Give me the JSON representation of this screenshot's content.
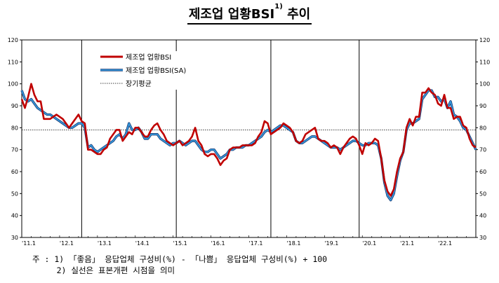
{
  "title": {
    "main": "제조업 업황BSI",
    "superscript": "1)",
    "suffix": " 추이"
  },
  "notes": [
    "주 : 1) 「좋음」 응답업체 구성비(%) - 「나쁨」 응답업체 구성비(%) + 100",
    "     2) 실선은 표본개편 시점을 의미"
  ],
  "chart_data": {
    "type": "line",
    "ylim": [
      30,
      120
    ],
    "yticks": [
      "120",
      "110",
      "100",
      "90",
      "80",
      "70",
      "60",
      "50",
      "40",
      "30"
    ],
    "xlabels": [
      "'11.1",
      "'12.1",
      "'13.1",
      "'14.1",
      "'15.1",
      "'16.1",
      "'17.1",
      "'18.1",
      "'19.1",
      "'20.1",
      "'21.1",
      "'22.1"
    ],
    "xlim": [
      0,
      144
    ],
    "long_term_average": 79,
    "sample_revision_months": [
      19,
      49,
      79,
      107
    ],
    "colors": {
      "bsi": "#c00000",
      "bsi_sa": "#3399dd",
      "bsi_sa_outline": "#1f3b73",
      "average": "#000000"
    },
    "legend": {
      "placement": "top-left",
      "items": [
        "제조업 업황BSI",
        "제조업 업황BSI(SA)",
        "장기평균"
      ]
    },
    "series": [
      {
        "name": "제조업 업황BSI",
        "values": [
          93,
          89,
          94,
          100,
          95,
          92,
          92,
          84,
          84,
          84,
          85,
          86,
          85,
          84,
          82,
          80,
          82,
          84,
          86,
          83,
          82,
          70,
          70,
          69,
          68,
          68,
          70,
          71,
          75,
          77,
          79,
          79,
          74,
          76,
          78,
          77,
          80,
          80,
          78,
          76,
          76,
          79,
          81,
          82,
          79,
          77,
          74,
          73,
          72,
          73,
          74,
          72,
          73,
          74,
          76,
          80,
          74,
          72,
          68,
          67,
          68,
          68,
          66,
          63,
          65,
          66,
          70,
          71,
          71,
          71,
          72,
          72,
          72,
          72,
          73,
          76,
          78,
          83,
          82,
          77,
          78,
          79,
          80,
          82,
          81,
          80,
          78,
          74,
          73,
          74,
          77,
          78,
          79,
          80,
          75,
          74,
          74,
          73,
          71,
          72,
          71,
          68,
          71,
          73,
          75,
          76,
          75,
          72,
          68,
          73,
          72,
          73,
          75,
          74,
          66,
          56,
          51,
          49,
          52,
          60,
          66,
          69,
          80,
          84,
          81,
          85,
          85,
          96,
          96,
          98,
          96,
          95,
          91,
          90,
          95,
          89,
          89,
          84,
          85,
          85,
          81,
          80,
          75,
          72,
          71
        ],
        "grid_step_months": 1
      },
      {
        "name": "제조업 업황BSI(SA)",
        "values": [
          97,
          93,
          92,
          93,
          91,
          89,
          88,
          87,
          86,
          86,
          85,
          84,
          83,
          82,
          81,
          80,
          80,
          81,
          82,
          82,
          80,
          71,
          72,
          70,
          69,
          70,
          71,
          72,
          73,
          74,
          76,
          77,
          75,
          77,
          82,
          79,
          79,
          80,
          78,
          75,
          75,
          77,
          77,
          77,
          75,
          74,
          73,
          72,
          73,
          73,
          74,
          73,
          72,
          73,
          74,
          74,
          72,
          70,
          69,
          69,
          70,
          70,
          68,
          66,
          67,
          68,
          70,
          70,
          71,
          71,
          71,
          72,
          72,
          73,
          74,
          75,
          76,
          78,
          79,
          78,
          79,
          80,
          81,
          81,
          80,
          79,
          78,
          74,
          73,
          73,
          74,
          75,
          76,
          76,
          75,
          74,
          73,
          72,
          71,
          71,
          71,
          70,
          71,
          72,
          73,
          74,
          74,
          73,
          72,
          72,
          73,
          73,
          73,
          72,
          66,
          55,
          49,
          47,
          50,
          58,
          65,
          69,
          79,
          82,
          82,
          83,
          84,
          93,
          95,
          97,
          97,
          94,
          94,
          92,
          93,
          89,
          92,
          86,
          85,
          83,
          80,
          79,
          76,
          73,
          70
        ],
        "grid_step_months": 1
      }
    ]
  }
}
